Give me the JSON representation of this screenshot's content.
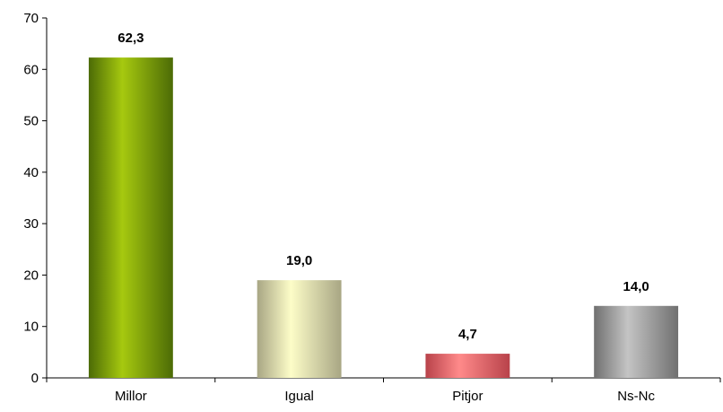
{
  "chart_data": {
    "type": "bar",
    "title": "",
    "xlabel": "",
    "ylabel": "",
    "ylim": [
      0,
      70
    ],
    "yticks": [
      "0",
      "10",
      "20",
      "30",
      "40",
      "50",
      "60",
      "70"
    ],
    "categories": [
      "Millor",
      "Igual",
      "Pitjor",
      "Ns-Nc"
    ],
    "values": [
      62.3,
      19.0,
      4.7,
      14.0
    ],
    "value_labels": [
      "62,3",
      "19,0",
      "4,7",
      "14,0"
    ],
    "grid": false,
    "legend": "none",
    "bar_colors": [
      {
        "dark": "#4c6b06",
        "light": "#a6c90f"
      },
      {
        "dark": "#a8a684",
        "light": "#fdfdc8"
      },
      {
        "dark": "#b8424a",
        "light": "#ff8a8a"
      },
      {
        "dark": "#707070",
        "light": "#c4c4c4"
      }
    ]
  }
}
